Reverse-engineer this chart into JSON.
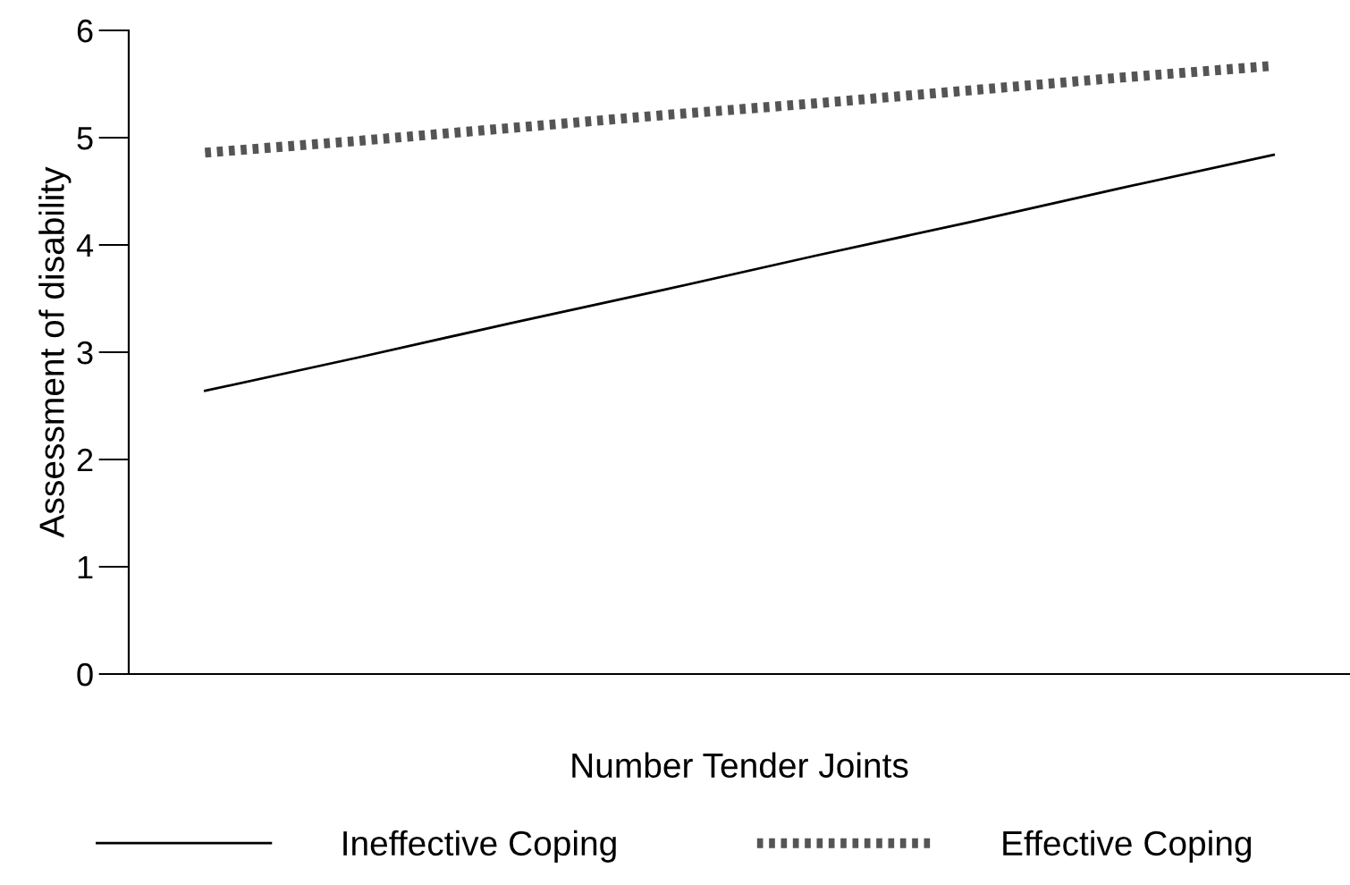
{
  "chart_data": {
    "type": "line",
    "xlabel": "Number Tender Joints",
    "ylabel": "Assessment of disability",
    "categories": [
      null,
      null,
      null,
      null,
      null,
      null,
      null,
      null
    ],
    "series": [
      {
        "name": "Ineffective Coping",
        "color": "#000000",
        "line_style": "solid",
        "values": [
          2.64,
          2.95,
          3.27,
          3.58,
          3.9,
          4.21,
          4.53,
          4.84
        ]
      },
      {
        "name": "Effective Coping",
        "color": "#555555",
        "line_style": "dotted",
        "values": [
          4.86,
          4.97,
          5.09,
          5.21,
          5.32,
          5.44,
          5.56,
          5.67
        ]
      }
    ],
    "ylim": [
      0,
      6
    ],
    "yticks": [
      0,
      1,
      2,
      3,
      4,
      5,
      6
    ],
    "grid": false,
    "legend": "bottom",
    "marker": "none"
  }
}
